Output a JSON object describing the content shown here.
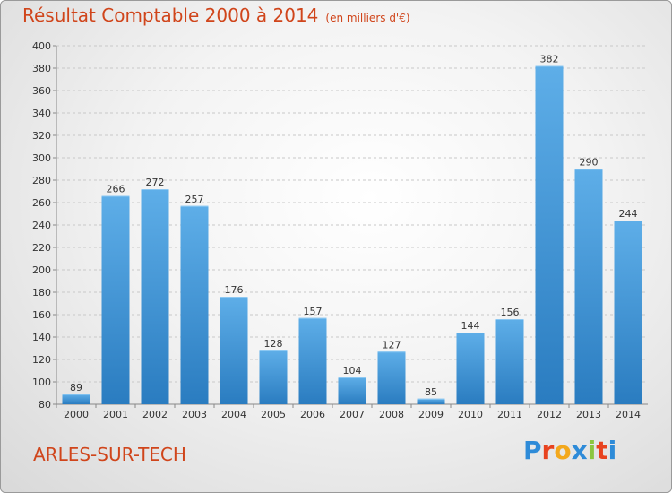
{
  "title": "Résultat Comptable 2000 à 2014",
  "subtitle": "(en milliers d'€)",
  "place": "ARLES-SUR-TECH",
  "logo": {
    "text": "Proxiti",
    "colors": [
      "#2e8bd8",
      "#e8431f",
      "#f3a81c",
      "#2e8bd8",
      "#8cc63f",
      "#e8431f",
      "#2e8bd8"
    ]
  },
  "colors": {
    "bar_light": "#5eaee8",
    "bar_dark": "#2a7cc0",
    "grid": "#c8c8c8",
    "accent": "#d0451b"
  },
  "chart_data": {
    "type": "bar",
    "title": "Résultat Comptable 2000 à 2014",
    "subtitle": "(en milliers d'€)",
    "xlabel": "",
    "ylabel": "",
    "categories": [
      "2000",
      "2001",
      "2002",
      "2003",
      "2004",
      "2005",
      "2006",
      "2007",
      "2008",
      "2009",
      "2010",
      "2011",
      "2012",
      "2013",
      "2014"
    ],
    "values": [
      89,
      266,
      272,
      257,
      176,
      128,
      157,
      104,
      127,
      85,
      144,
      156,
      382,
      290,
      244
    ],
    "ylim": [
      80,
      400
    ],
    "yticks": [
      80,
      100,
      120,
      140,
      160,
      180,
      200,
      220,
      240,
      260,
      280,
      300,
      320,
      340,
      360,
      380,
      400
    ],
    "grid": true,
    "data_labels": true
  }
}
